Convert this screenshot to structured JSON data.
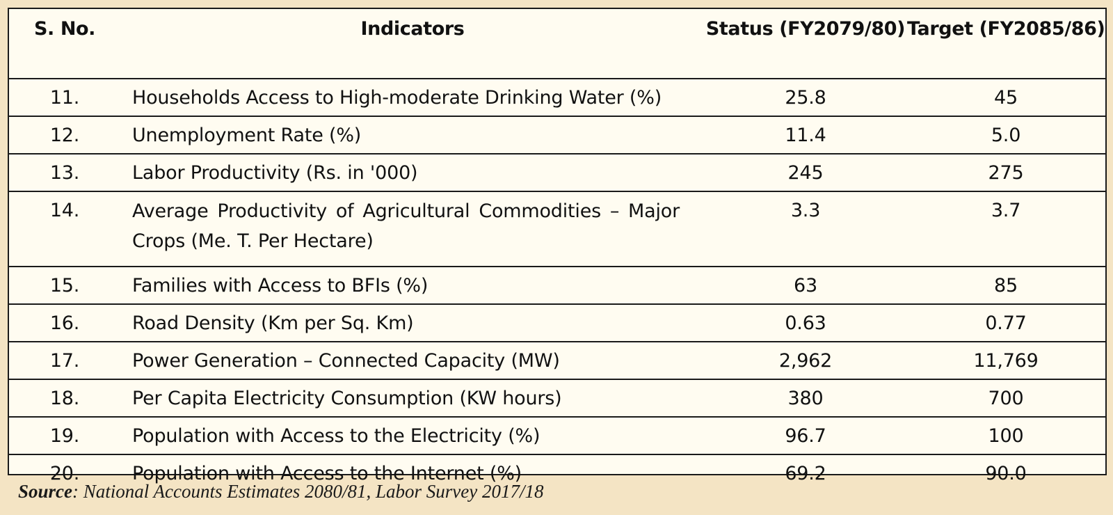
{
  "table": {
    "headers": {
      "sno": "S. No.",
      "indicator": "Indicators",
      "status": "Status (FY2079/80)",
      "target": "Target (FY2085/86)"
    },
    "rows": [
      {
        "sno": "11.",
        "indicator": "Households Access to High-moderate Drinking Water (%)",
        "status": "25.8",
        "target": "45"
      },
      {
        "sno": "12.",
        "indicator": "Unemployment Rate (%)",
        "status": "11.4",
        "target": "5.0"
      },
      {
        "sno": "13.",
        "indicator": "Labor Productivity (Rs. in '000)",
        "status": "245",
        "target": "275"
      },
      {
        "sno": "14.",
        "indicator": "Average Productivity of Agricultural Commodities – Major Crops (Me. T. Per Hectare)",
        "status": "3.3",
        "target": "3.7"
      },
      {
        "sno": "15.",
        "indicator": "Families with Access to BFIs (%)",
        "status": "63",
        "target": "85"
      },
      {
        "sno": "16.",
        "indicator": "Road Density (Km per Sq. Km)",
        "status": "0.63",
        "target": "0.77"
      },
      {
        "sno": "17.",
        "indicator": "Power Generation – Connected Capacity (MW)",
        "status": "2,962",
        "target": "11,769"
      },
      {
        "sno": "18.",
        "indicator": "Per Capita Electricity Consumption (KW hours)",
        "status": "380",
        "target": "700"
      },
      {
        "sno": "19.",
        "indicator": "Population with Access to the Electricity (%)",
        "status": "96.7",
        "target": "100"
      },
      {
        "sno": "20.",
        "indicator": "Population with Access to the Internet (%)",
        "status": "69.2",
        "target": "90.0"
      }
    ]
  },
  "source": {
    "label": "Source",
    "text": ": National Accounts Estimates 2080/81, Labor Survey 2017/18"
  }
}
